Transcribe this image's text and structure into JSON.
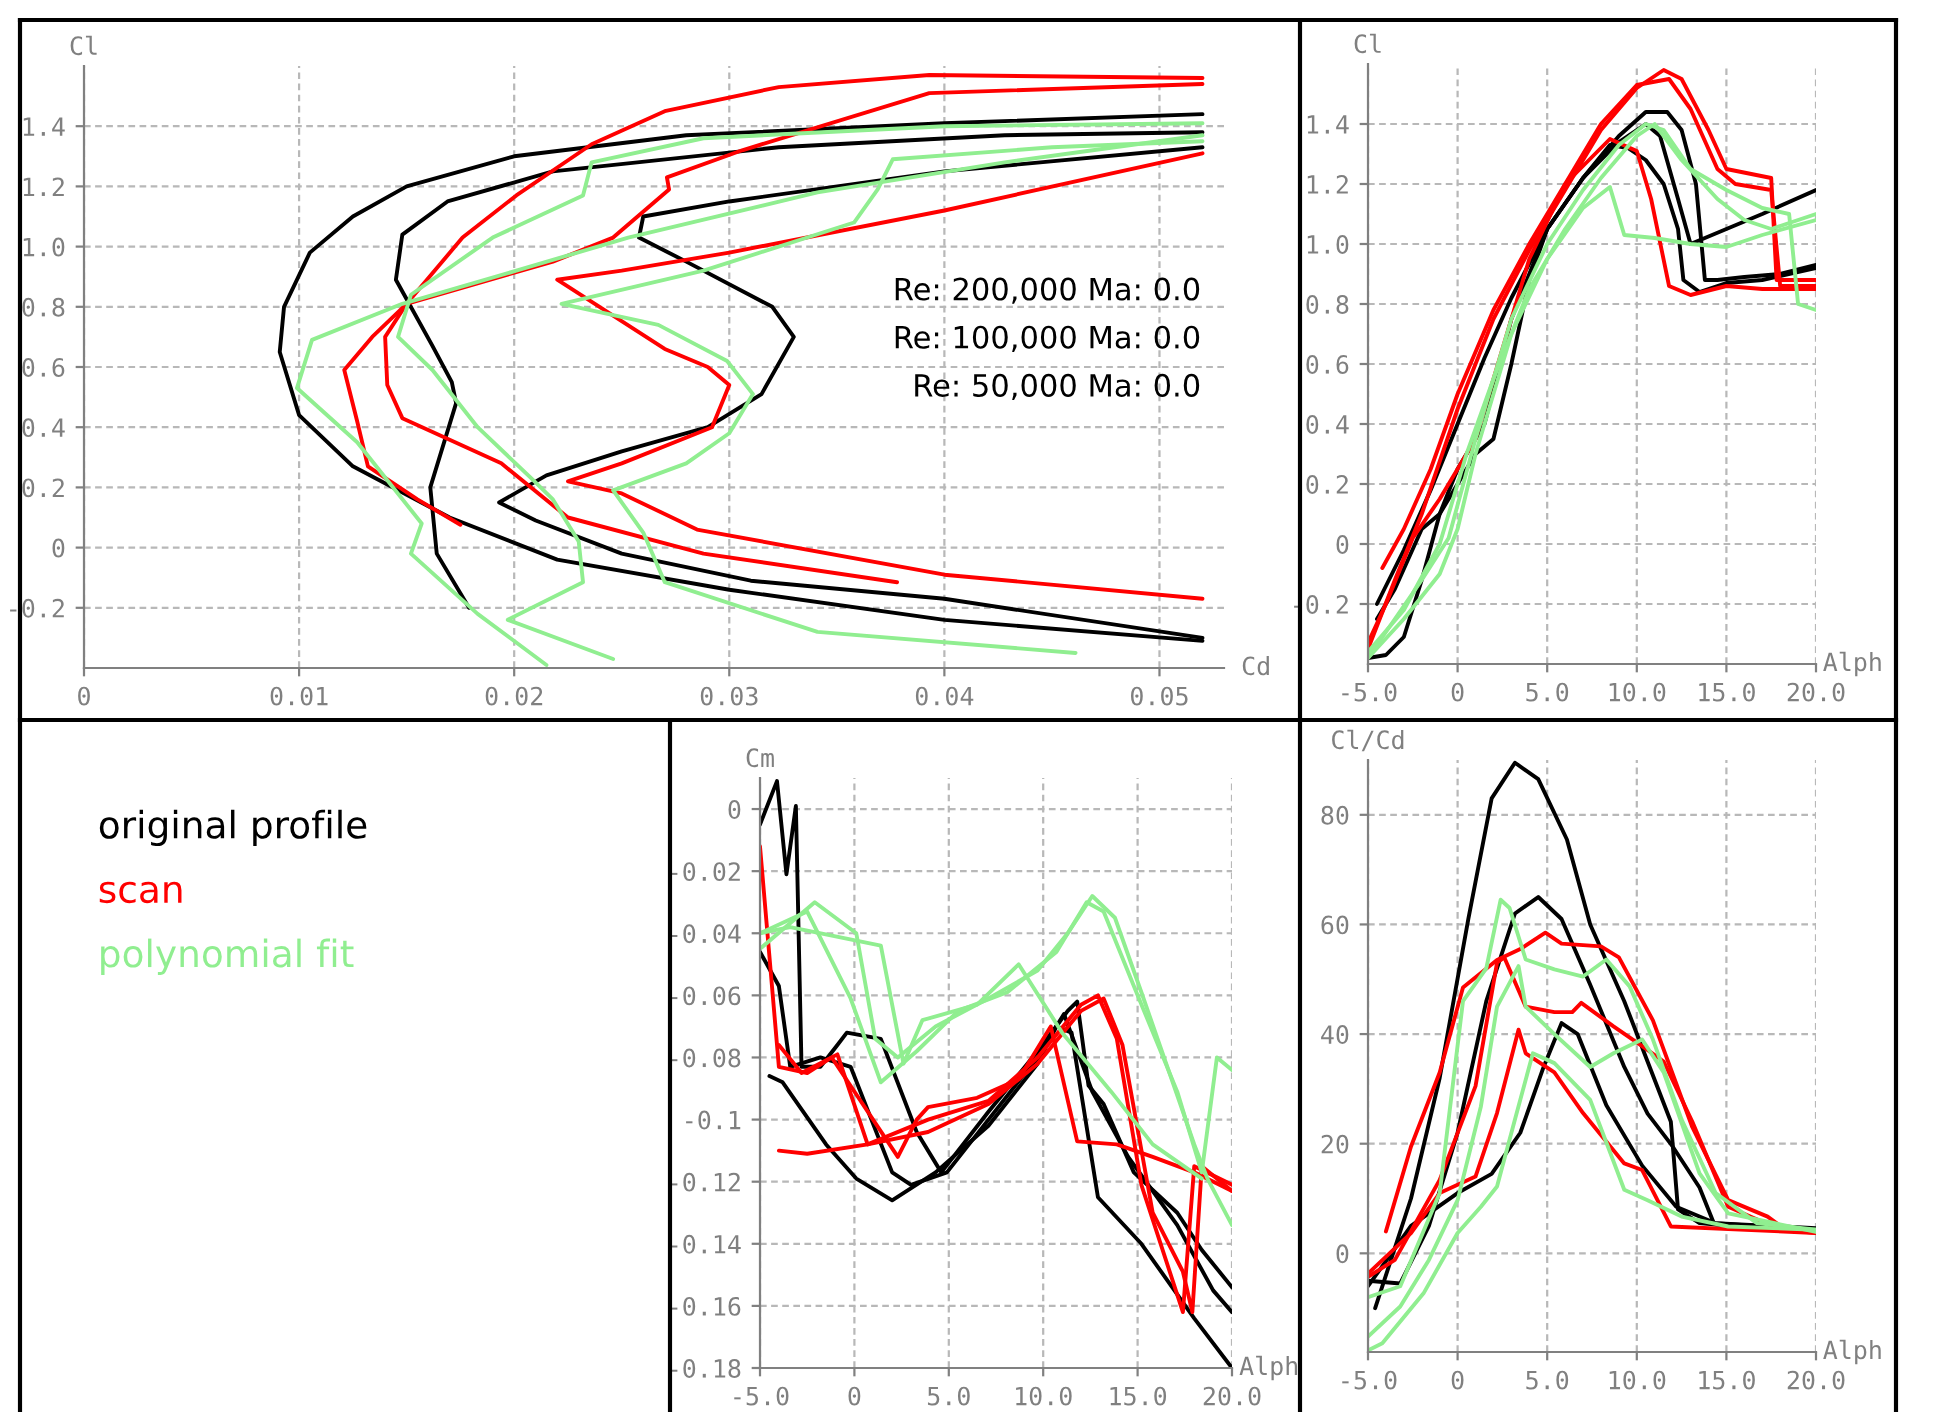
{
  "chart_data": [
    {
      "type": "line",
      "xlabel": "Cd",
      "ylabel": "Cl",
      "xlim": [
        0,
        0.053
      ],
      "ylim": [
        -0.4,
        1.6
      ],
      "xticks": [
        0,
        0.01,
        0.02,
        0.03,
        0.04,
        0.05
      ],
      "yticks": [
        -0.2,
        0,
        0.2,
        0.4,
        0.6,
        0.8,
        {
          "value": 1,
          "label": "1.0"
        },
        1.2,
        1.4
      ],
      "grid": true,
      "legend": "bottom left",
      "annotations": [
        "Re: 200,000 Ma: 0.0",
        "Re: 100,000 Ma: 0.0",
        "Re: 50,000 Ma: 0.0"
      ],
      "series": [
        {
          "name": "original profile",
          "color": "#000000",
          "x": [
            0.052,
            0.04,
            0.03,
            0.022,
            0.017,
            0.0125,
            0.01,
            0.0091,
            0.0093,
            0.0105,
            0.0125,
            0.015,
            0.02,
            0.028,
            0.04,
            0.052
          ],
          "values": [
            -0.31,
            -0.24,
            -0.14,
            -0.04,
            0.1,
            0.27,
            0.44,
            0.65,
            0.8,
            0.98,
            1.1,
            1.2,
            1.3,
            1.37,
            1.41,
            1.44
          ]
        },
        {
          "color": "#000000",
          "x": [
            0.0179,
            0.0164,
            0.0161,
            0.0173,
            0.0171,
            0.0162,
            0.0145,
            0.0148,
            0.0169,
            0.0218,
            0.0323,
            0.0428,
            0.052
          ],
          "values": [
            -0.2,
            -0.02,
            0.2,
            0.48,
            0.55,
            0.67,
            0.89,
            1.04,
            1.15,
            1.25,
            1.33,
            1.37,
            1.38
          ]
        },
        {
          "color": "#000000",
          "x": [
            0.052,
            0.04,
            0.031,
            0.025,
            0.021,
            0.0193,
            0.0215,
            0.025,
            0.029,
            0.0315,
            0.033,
            0.032,
            0.028,
            0.0258,
            0.026,
            0.03,
            0.04,
            0.052
          ],
          "values": [
            -0.3,
            -0.17,
            -0.11,
            -0.02,
            0.09,
            0.15,
            0.24,
            0.32,
            0.4,
            0.51,
            0.7,
            0.8,
            0.95,
            1.03,
            1.1,
            1.15,
            1.25,
            1.33
          ]
        },
        {
          "name": "scan",
          "color": "#ff0000",
          "x": [
            0.0175,
            0.0155,
            0.0132,
            0.0127,
            0.0121,
            0.0134,
            0.015,
            0.0176,
            0.0201,
            0.0236,
            0.027,
            0.0323,
            0.0393,
            0.052
          ],
          "values": [
            0.076,
            0.16,
            0.27,
            0.42,
            0.59,
            0.7,
            0.81,
            1.03,
            1.17,
            1.34,
            1.45,
            1.53,
            1.57,
            1.56
          ]
        },
        {
          "color": "#ff0000",
          "x": [
            0.0378,
            0.0288,
            0.0225,
            0.0194,
            0.0148,
            0.0141,
            0.014,
            0.015,
            0.0218,
            0.0246,
            0.0272,
            0.0271,
            0.0306,
            0.0393,
            0.052
          ],
          "values": [
            -0.115,
            -0.02,
            0.1,
            0.28,
            0.43,
            0.54,
            0.7,
            0.81,
            0.95,
            1.03,
            1.19,
            1.23,
            1.32,
            1.51,
            1.54
          ]
        },
        {
          "color": "#ff0000",
          "x": [
            0.052,
            0.04,
            0.0285,
            0.025,
            0.0225,
            0.025,
            0.0292,
            0.03,
            0.029,
            0.027,
            0.022,
            0.025,
            0.03,
            0.04,
            0.052
          ],
          "values": [
            -0.17,
            -0.09,
            0.06,
            0.18,
            0.22,
            0.28,
            0.4,
            0.54,
            0.6,
            0.66,
            0.89,
            0.92,
            0.98,
            1.12,
            1.31
          ]
        },
        {
          "name": "polynomial fit",
          "color": "#90ee90",
          "x": [
            0.0215,
            0.0183,
            0.0152,
            0.0157,
            0.0127,
            0.0099,
            0.0106,
            0.0148,
            0.0201,
            0.0253,
            0.0341,
            0.0428,
            0.052
          ],
          "values": [
            -0.39,
            -0.22,
            -0.02,
            0.08,
            0.35,
            0.53,
            0.69,
            0.81,
            0.92,
            1.03,
            1.18,
            1.28,
            1.37
          ]
        },
        {
          "color": "#90ee90",
          "x": [
            0.0246,
            0.0197,
            0.0232,
            0.023,
            0.0218,
            0.0208,
            0.0183,
            0.0162,
            0.0146,
            0.0152,
            0.019,
            0.0232,
            0.0236,
            0.0288,
            0.04,
            0.052
          ],
          "values": [
            -0.37,
            -0.24,
            -0.115,
            0.02,
            0.16,
            0.23,
            0.4,
            0.59,
            0.7,
            0.84,
            1.03,
            1.17,
            1.28,
            1.36,
            1.4,
            1.41
          ]
        },
        {
          "color": "#90ee90",
          "x": [
            0.0461,
            0.0341,
            0.027,
            0.026,
            0.0246,
            0.028,
            0.03,
            0.0311,
            0.0299,
            0.0267,
            0.0222,
            0.0288,
            0.0358,
            0.0369,
            0.0376,
            0.045,
            0.052
          ],
          "values": [
            -0.35,
            -0.28,
            -0.115,
            0.05,
            0.19,
            0.28,
            0.38,
            0.51,
            0.62,
            0.74,
            0.81,
            0.92,
            1.08,
            1.19,
            1.29,
            1.33,
            1.35
          ]
        }
      ]
    },
    {
      "type": "line",
      "xlabel": "Alph",
      "ylabel": "Cl",
      "xlim": [
        -5,
        20
      ],
      "ylim": [
        -0.4,
        1.6
      ],
      "xticks": [
        {
          "value": -5,
          "label": "-5.0"
        },
        0,
        {
          "value": 5,
          "label": "5.0"
        },
        {
          "value": 10,
          "label": "10.0"
        },
        {
          "value": 15,
          "label": "15.0"
        },
        {
          "value": 20,
          "label": "20.0"
        }
      ],
      "yticks": [
        -0.2,
        0,
        0.2,
        0.4,
        0.6,
        0.8,
        {
          "value": 1,
          "label": "1.0"
        },
        1.2,
        1.4
      ],
      "grid": true,
      "series": [
        {
          "color": "#000000",
          "x": [
            -4.5,
            -3,
            -1.5,
            0,
            1.5,
            3,
            5,
            7,
            9,
            10.5,
            11.7,
            12.5,
            13.3,
            13.8,
            14.5,
            16,
            18,
            20
          ],
          "values": [
            -0.2,
            -0.02,
            0.18,
            0.4,
            0.62,
            0.82,
            1.05,
            1.22,
            1.36,
            1.44,
            1.44,
            1.38,
            1.2,
            0.88,
            0.88,
            0.89,
            0.9,
            0.93
          ]
        },
        {
          "color": "#000000",
          "x": [
            -5,
            -4,
            -3,
            -2,
            -1,
            0,
            1.5,
            3,
            5,
            7,
            9,
            10.5,
            11.3,
            12.3,
            13,
            15,
            17,
            20
          ],
          "values": [
            -0.38,
            -0.37,
            -0.31,
            -0.12,
            0.1,
            0.25,
            0.4,
            0.75,
            1.05,
            1.22,
            1.34,
            1.4,
            1.36,
            1.15,
            1.0,
            1.05,
            1.1,
            1.18
          ]
        },
        {
          "color": "#000000",
          "x": [
            -4.5,
            -3.5,
            -2,
            -1,
            0,
            1,
            2,
            3,
            4,
            5,
            7,
            8.5,
            9.5,
            10.5,
            11.5,
            12.3,
            12.6,
            13.5,
            15,
            17,
            20
          ],
          "values": [
            -0.25,
            -0.15,
            0.05,
            0.1,
            0.2,
            0.3,
            0.35,
            0.6,
            0.88,
            1.05,
            1.22,
            1.33,
            1.32,
            1.28,
            1.2,
            1.05,
            0.88,
            0.84,
            0.87,
            0.88,
            0.92
          ]
        },
        {
          "color": "#ff0000",
          "x": [
            -5,
            -3.5,
            -2,
            0,
            2,
            4,
            6,
            8,
            10,
            11.5,
            12.5,
            14,
            15,
            17.5,
            17.8,
            20
          ],
          "values": [
            -0.35,
            -0.12,
            0.1,
            0.45,
            0.75,
            0.98,
            1.18,
            1.38,
            1.52,
            1.58,
            1.55,
            1.38,
            1.25,
            1.22,
            0.88,
            0.88
          ]
        },
        {
          "color": "#ff0000",
          "x": [
            -4.2,
            -3,
            -1.5,
            0,
            2,
            4,
            6,
            8,
            10,
            11.8,
            13,
            14.5,
            15.5,
            17.5,
            18,
            20
          ],
          "values": [
            -0.08,
            0.05,
            0.25,
            0.5,
            0.78,
            1.0,
            1.2,
            1.4,
            1.53,
            1.55,
            1.45,
            1.25,
            1.2,
            1.18,
            0.86,
            0.86
          ]
        },
        {
          "color": "#ff0000",
          "x": [
            -5,
            -4,
            -2.5,
            -1,
            0,
            1,
            2,
            4,
            6,
            8.5,
            10,
            10.8,
            11.8,
            13,
            15,
            17,
            20
          ],
          "values": [
            -0.33,
            -0.2,
            0.02,
            0.15,
            0.25,
            0.35,
            0.55,
            0.95,
            1.2,
            1.35,
            1.31,
            1.15,
            0.86,
            0.83,
            0.86,
            0.85,
            0.85
          ]
        },
        {
          "color": "#90ee90",
          "x": [
            -5,
            -3.5,
            -2,
            -0.5,
            1,
            3,
            5,
            7,
            9,
            10.5,
            11.5,
            13,
            15,
            17,
            18.5,
            19,
            20
          ],
          "values": [
            -0.38,
            -0.25,
            -0.12,
            0.02,
            0.35,
            0.75,
            1.0,
            1.18,
            1.33,
            1.4,
            1.38,
            1.25,
            1.18,
            1.12,
            1.1,
            0.8,
            0.78
          ]
        },
        {
          "color": "#90ee90",
          "x": [
            -5,
            -3,
            -1,
            0.5,
            2,
            4,
            6,
            8,
            10,
            11,
            12.5,
            14.5,
            16,
            17.5,
            20
          ],
          "values": [
            -0.36,
            -0.22,
            0.0,
            0.3,
            0.55,
            0.85,
            1.05,
            1.22,
            1.36,
            1.4,
            1.28,
            1.15,
            1.08,
            1.05,
            1.1
          ]
        },
        {
          "color": "#90ee90",
          "x": [
            -5,
            -3,
            -1,
            0,
            1,
            3,
            5,
            7,
            8.5,
            9.3,
            11,
            13,
            15,
            17,
            20
          ],
          "values": [
            -0.38,
            -0.25,
            -0.1,
            0.05,
            0.3,
            0.7,
            0.95,
            1.12,
            1.19,
            1.03,
            1.02,
            1.0,
            0.99,
            1.03,
            1.08
          ]
        }
      ]
    },
    {
      "type": "line",
      "xlabel": "Alph",
      "ylabel": "Cm",
      "xlim": [
        -5,
        20
      ],
      "ylim": [
        -0.18,
        0.01
      ],
      "xticks": [
        {
          "value": -5,
          "label": "-5.0"
        },
        0,
        {
          "value": 5,
          "label": "5.0"
        },
        {
          "value": 10,
          "label": "10.0"
        },
        {
          "value": 15,
          "label": "15.0"
        },
        {
          "value": 20,
          "label": "20.0"
        }
      ],
      "yticks": [
        -0.18,
        -0.16,
        -0.14,
        -0.12,
        -0.1,
        -0.08,
        -0.06,
        -0.04,
        -0.02,
        0
      ],
      "grid": true,
      "series": [
        {
          "color": "#000000",
          "x": [
            -5,
            -4.1,
            -3.6,
            -3.1,
            -2.8,
            -1.8,
            -0.9,
            -0.4,
            1.4,
            3.3,
            4.6,
            7.1,
            9.7,
            11.3,
            11.8,
            12.4,
            13.2,
            14.8,
            17.1,
            18.4,
            20
          ],
          "values": [
            -0.005,
            0.009,
            -0.021,
            0.001,
            -0.083,
            -0.083,
            -0.076,
            -0.072,
            -0.074,
            -0.104,
            -0.117,
            -0.0975,
            -0.078,
            -0.065,
            -0.062,
            -0.089,
            -0.095,
            -0.117,
            -0.13,
            -0.142,
            -0.154
          ]
        },
        {
          "color": "#000000",
          "x": [
            -5,
            -4,
            -3.4,
            -1.8,
            -0.2,
            2.0,
            3.0,
            4.9,
            7.1,
            9.7,
            11.1,
            12.6,
            14.5,
            17.1,
            19,
            20
          ],
          "values": [
            -0.046,
            -0.057,
            -0.083,
            -0.08,
            -0.083,
            -0.117,
            -0.121,
            -0.117,
            -0.1,
            -0.08,
            -0.066,
            -0.091,
            -0.112,
            -0.134,
            -0.155,
            -0.162
          ]
        },
        {
          "color": "#000000",
          "x": [
            -4.5,
            -3.8,
            -1.5,
            0.1,
            2.0,
            4.3,
            7.1,
            9.7,
            10.7,
            11.5,
            12.9,
            15.2,
            18,
            20
          ],
          "values": [
            -0.086,
            -0.088,
            -0.108,
            -0.119,
            -0.126,
            -0.117,
            -0.102,
            -0.082,
            -0.07,
            -0.072,
            -0.125,
            -0.14,
            -0.164,
            -0.18
          ]
        },
        {
          "color": "#ff0000",
          "x": [
            -5,
            -4,
            -2.5,
            -1.2,
            2.3,
            3.3,
            3.9,
            6.5,
            8.7,
            10.4,
            11.8,
            13.9,
            15.8,
            18,
            20
          ],
          "values": [
            -0.012,
            -0.083,
            -0.085,
            -0.08,
            -0.112,
            -0.1,
            -0.096,
            -0.093,
            -0.087,
            -0.07,
            -0.107,
            -0.108,
            -0.112,
            -0.117,
            -0.123
          ]
        },
        {
          "color": "#ff0000",
          "x": [
            -4,
            -2.8,
            -0.9,
            0.7,
            3.9,
            7.1,
            9.7,
            12,
            12.9,
            13.9,
            15.2,
            17.4,
            18,
            20
          ],
          "values": [
            -0.076,
            -0.085,
            -0.079,
            -0.108,
            -0.1,
            -0.094,
            -0.08,
            -0.063,
            -0.06,
            -0.074,
            -0.121,
            -0.162,
            -0.115,
            -0.121
          ]
        },
        {
          "color": "#ff0000",
          "x": [
            -4,
            -2.5,
            0.7,
            3.9,
            7.1,
            9.7,
            12,
            13.2,
            14.2,
            15.8,
            17.4,
            17.9,
            18.4,
            20
          ],
          "values": [
            -0.11,
            -0.111,
            -0.108,
            -0.104,
            -0.095,
            -0.082,
            -0.065,
            -0.061,
            -0.076,
            -0.13,
            -0.149,
            -0.162,
            -0.115,
            -0.123
          ]
        },
        {
          "color": "#90ee90",
          "x": [
            -5,
            -2.1,
            0.1,
            1.1,
            2.3,
            4.3,
            7.1,
            9.7,
            11.3,
            12.6,
            13.8,
            15.2,
            16.4,
            18,
            18.7,
            20
          ],
          "values": [
            -0.045,
            -0.03,
            -0.04,
            -0.074,
            -0.08,
            -0.07,
            -0.061,
            -0.052,
            -0.04,
            -0.028,
            -0.035,
            -0.059,
            -0.08,
            -0.108,
            -0.119,
            -0.134
          ]
        },
        {
          "color": "#90ee90",
          "x": [
            -5,
            -2.5,
            -0.2,
            1.4,
            3.3,
            5.5,
            8.1,
            10.7,
            12.3,
            13.2,
            14.8,
            17.1,
            18.4,
            19.2,
            20
          ],
          "values": [
            -0.04,
            -0.033,
            -0.061,
            -0.088,
            -0.078,
            -0.065,
            -0.059,
            -0.046,
            -0.03,
            -0.033,
            -0.057,
            -0.091,
            -0.117,
            -0.08,
            -0.084
          ]
        },
        {
          "color": "#90ee90",
          "x": [
            -5,
            -3.4,
            1.4,
            2.6,
            3.6,
            6.5,
            8.7,
            11,
            13.6,
            15.8,
            18.4
          ],
          "values": [
            -0.04,
            -0.038,
            -0.044,
            -0.082,
            -0.068,
            -0.063,
            -0.05,
            -0.072,
            -0.091,
            -0.108,
            -0.119
          ]
        }
      ]
    },
    {
      "type": "line",
      "xlabel": "Alph",
      "ylabel": "Cl/Cd",
      "xlim": [
        -5,
        20
      ],
      "ylim": [
        -18,
        90
      ],
      "xticks": [
        {
          "value": -5,
          "label": "-5.0"
        },
        0,
        {
          "value": 5,
          "label": "5.0"
        },
        {
          "value": 10,
          "label": "10.0"
        },
        {
          "value": 15,
          "label": "15.0"
        },
        {
          "value": 20,
          "label": "20.0"
        }
      ],
      "yticks": [
        0,
        20,
        40,
        60,
        80
      ],
      "grid": true,
      "series": [
        {
          "color": "#000000",
          "x": [
            -4.6,
            -2.6,
            -1,
            0.6,
            1.9,
            3.2,
            4.5,
            6.1,
            7.4,
            9.3,
            10.6,
            11.9,
            12.3,
            13.5,
            15.1,
            20
          ],
          "values": [
            -10,
            10,
            32,
            61,
            83,
            89.5,
            86.5,
            75.5,
            60,
            46,
            35,
            24,
            8,
            5.5,
            5,
            4.3
          ]
        },
        {
          "color": "#000000",
          "x": [
            -5,
            -3.2,
            -1.6,
            0,
            1.6,
            3.2,
            4.5,
            5.8,
            7.4,
            9.3,
            10.6,
            12,
            13.5,
            14.3,
            20
          ],
          "values": [
            -5,
            -5.5,
            5,
            22,
            46,
            62,
            65,
            61,
            49,
            34,
            25.5,
            19.5,
            12,
            5.5,
            4.3
          ]
        },
        {
          "color": "#000000",
          "x": [
            -5,
            -2.6,
            0,
            1.9,
            3.5,
            4.8,
            5.8,
            6.7,
            8.3,
            10.3,
            12.2,
            14.4,
            20
          ],
          "values": [
            -6,
            5,
            11,
            14.5,
            22,
            34,
            42,
            40,
            27,
            16,
            8.5,
            5.5,
            4.6
          ]
        },
        {
          "color": "#ff0000",
          "x": [
            -4,
            -2.6,
            -1,
            0.3,
            2.2,
            3.5,
            4.9,
            5.8,
            8,
            9,
            10.9,
            13.1,
            15.1,
            17.3,
            18.3,
            20
          ],
          "values": [
            4,
            19.5,
            33,
            48.5,
            53.5,
            55.5,
            58.5,
            56.5,
            56,
            54,
            42.5,
            23,
            9.7,
            6.7,
            4.3,
            3.7
          ]
        },
        {
          "color": "#ff0000",
          "x": [
            -5,
            -3.5,
            -1,
            1,
            2.2,
            2.6,
            3.8,
            5.4,
            6.4,
            6.9,
            8.7,
            10.3,
            11.5,
            13.1,
            15.1,
            17.6,
            20
          ],
          "values": [
            -4.3,
            -1.2,
            13.4,
            30.5,
            53,
            54,
            45,
            44,
            44,
            45.7,
            41.4,
            37.8,
            35,
            24,
            8.5,
            4.9,
            3.9
          ]
        },
        {
          "color": "#ff0000",
          "x": [
            -5,
            -2.6,
            -1,
            1,
            2.2,
            3.4,
            3.8,
            5.4,
            7,
            9.3,
            10.3,
            11.9,
            20
          ],
          "values": [
            -3.7,
            3.7,
            11,
            14,
            25.6,
            40.8,
            36.5,
            33,
            25.6,
            16.4,
            15.2,
            4.9,
            3.7
          ]
        },
        {
          "color": "#90ee90",
          "x": [
            -5,
            -3.2,
            -1,
            0.3,
            1.6,
            2.4,
            2.9,
            3.8,
            5.4,
            7,
            8.3,
            9.6,
            10.9,
            12.5,
            14.4,
            16.7,
            20
          ],
          "values": [
            -8,
            -6,
            11,
            46,
            52,
            64.5,
            63,
            53.6,
            51.8,
            50.5,
            53.6,
            48.7,
            39,
            24.4,
            11,
            5.5,
            4.3
          ]
        },
        {
          "color": "#90ee90",
          "x": [
            -5,
            -3.2,
            -1.6,
            0,
            1.3,
            2.2,
            3.4,
            3.8,
            5.4,
            7.4,
            8.7,
            10.3,
            11.5,
            13.5,
            15.1,
            20
          ],
          "values": [
            -15.2,
            -9.7,
            -1.2,
            9.7,
            26.8,
            45,
            52.4,
            45,
            40,
            34,
            36.5,
            39,
            33,
            14.6,
            7.3,
            3.9
          ]
        },
        {
          "color": "#90ee90",
          "x": [
            -5,
            -4.2,
            -1.9,
            0,
            1.3,
            2.2,
            3.2,
            4.2,
            5.4,
            7.4,
            9.3,
            10.6,
            12.5,
            15.1,
            20
          ],
          "values": [
            -17.7,
            -16.4,
            -7.3,
            3.7,
            8.5,
            12.2,
            24.4,
            36.5,
            34.7,
            28,
            11.6,
            9.7,
            6.7,
            4.9,
            4.3
          ]
        }
      ]
    }
  ]
}
